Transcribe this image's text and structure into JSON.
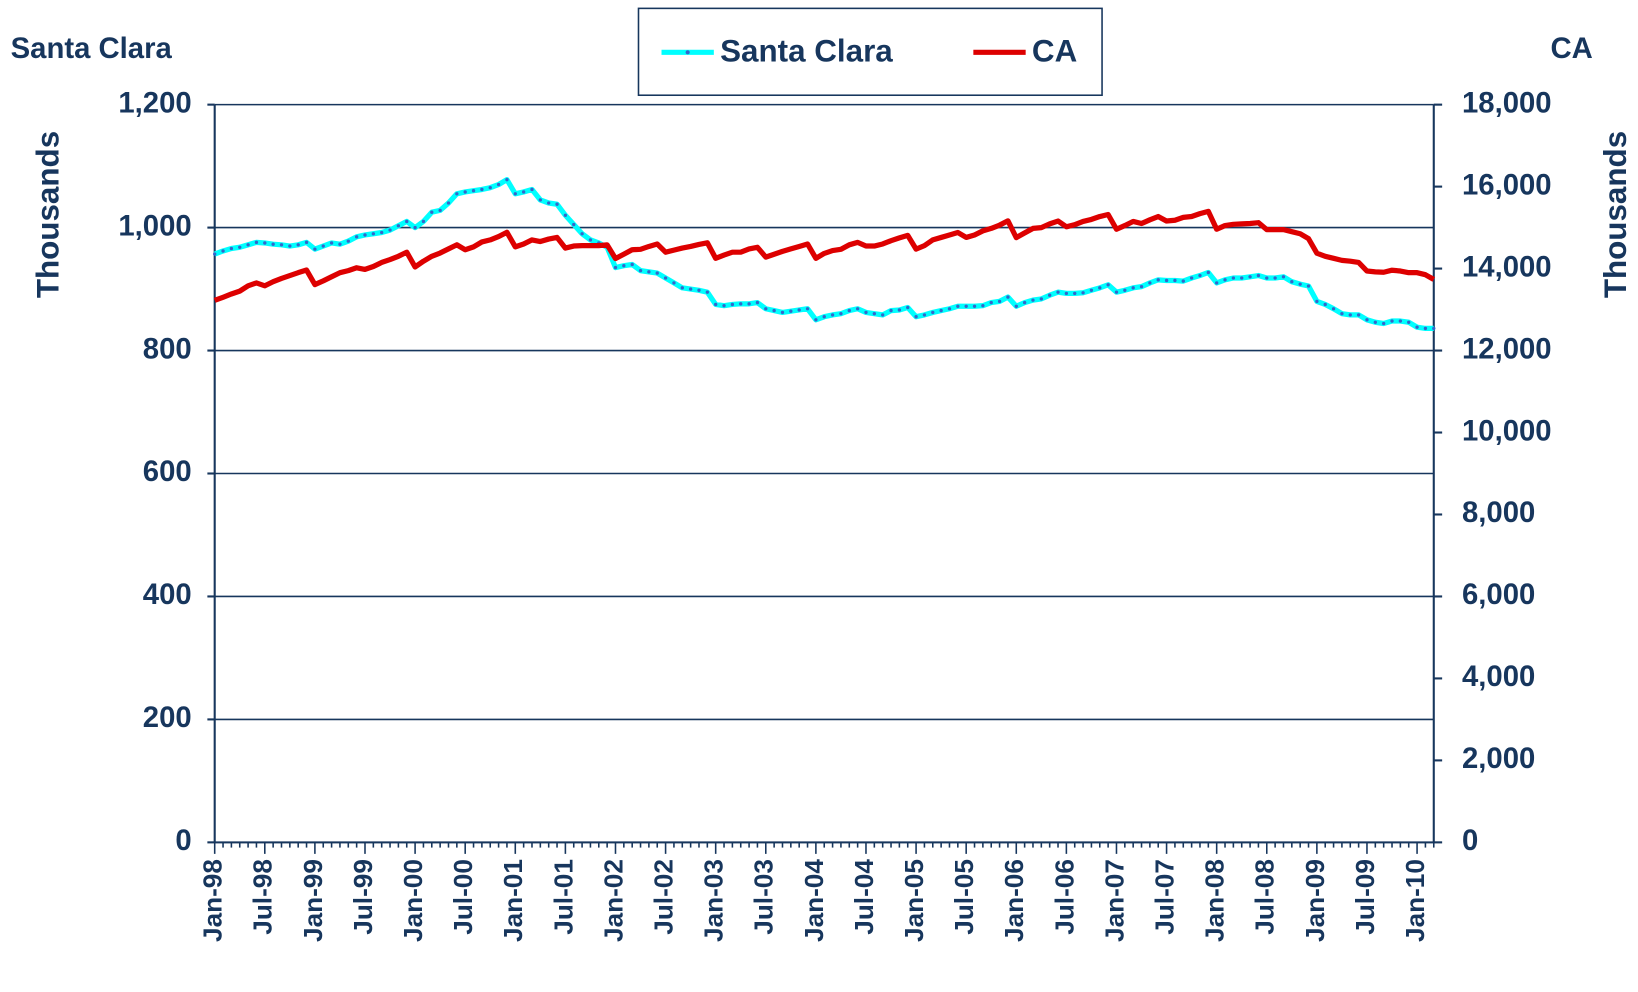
{
  "chart_data": {
    "type": "line",
    "ytitle": "Santa Clara",
    "y2title": "CA",
    "ylabel": "Thousands",
    "y2label": "Thousands",
    "categories": [
      "Jan-98",
      null,
      null,
      null,
      null,
      null,
      "Jul-98",
      null,
      null,
      null,
      null,
      null,
      "Jan-99",
      null,
      null,
      null,
      null,
      null,
      "Jul-99",
      null,
      null,
      null,
      null,
      null,
      "Jan-00",
      null,
      null,
      null,
      null,
      null,
      "Jul-00",
      null,
      null,
      null,
      null,
      null,
      "Jan-01",
      null,
      null,
      null,
      null,
      null,
      "Jul-01",
      null,
      null,
      null,
      null,
      null,
      "Jan-02",
      null,
      null,
      null,
      null,
      null,
      "Jul-02",
      null,
      null,
      null,
      null,
      null,
      "Jan-03",
      null,
      null,
      null,
      null,
      null,
      "Jul-03",
      null,
      null,
      null,
      null,
      null,
      "Jan-04",
      null,
      null,
      null,
      null,
      null,
      "Jul-04",
      null,
      null,
      null,
      null,
      null,
      "Jan-05",
      null,
      null,
      null,
      null,
      null,
      "Jul-05",
      null,
      null,
      null,
      null,
      null,
      "Jan-06",
      null,
      null,
      null,
      null,
      null,
      "Jul-06",
      null,
      null,
      null,
      null,
      null,
      "Jan-07",
      null,
      null,
      null,
      null,
      null,
      "Jul-07",
      null,
      null,
      null,
      null,
      null,
      "Jan-08",
      null,
      null,
      null,
      null,
      null,
      "Jul-08",
      null,
      null,
      null,
      null,
      null,
      "Jan-09",
      null,
      null,
      null,
      null,
      null,
      "Jul-09",
      null,
      null,
      null,
      null,
      null,
      "Jan-10",
      null,
      null
    ],
    "series": [
      {
        "name": "Santa Clara",
        "color": "#00ffff",
        "marker_color": "#3366cc",
        "axis": "y",
        "values": [
          957,
          962,
          966,
          968,
          972,
          976,
          975,
          973,
          972,
          970,
          972,
          976,
          965,
          970,
          975,
          973,
          978,
          985,
          988,
          990,
          992,
          996,
          1003,
          1010,
          1000,
          1010,
          1025,
          1028,
          1040,
          1055,
          1058,
          1060,
          1062,
          1065,
          1070,
          1078,
          1055,
          1058,
          1062,
          1045,
          1040,
          1038,
          1020,
          1005,
          990,
          980,
          975,
          968,
          935,
          938,
          940,
          930,
          928,
          926,
          918,
          910,
          902,
          900,
          898,
          895,
          875,
          873,
          875,
          876,
          876,
          878,
          868,
          865,
          862,
          864,
          866,
          868,
          850,
          855,
          858,
          860,
          865,
          868,
          862,
          860,
          858,
          865,
          866,
          870,
          855,
          858,
          862,
          865,
          868,
          872,
          872,
          872,
          873,
          878,
          880,
          887,
          872,
          878,
          882,
          884,
          890,
          895,
          893,
          893,
          894,
          898,
          902,
          907,
          895,
          898,
          902,
          904,
          910,
          915,
          914,
          914,
          913,
          918,
          922,
          927,
          910,
          915,
          918,
          918,
          920,
          922,
          918,
          918,
          920,
          912,
          908,
          905,
          880,
          875,
          868,
          860,
          858,
          858,
          850,
          846,
          844,
          848,
          848,
          846,
          838,
          836,
          836
        ]
      },
      {
        "name": "CA",
        "color": "#dd0000",
        "axis": "y2",
        "values": [
          13225,
          13300,
          13380,
          13450,
          13580,
          13650,
          13580,
          13680,
          13760,
          13830,
          13900,
          13965,
          13610,
          13700,
          13800,
          13900,
          13950,
          14020,
          13980,
          14050,
          14150,
          14220,
          14300,
          14400,
          14040,
          14180,
          14300,
          14380,
          14480,
          14580,
          14460,
          14530,
          14650,
          14700,
          14780,
          14885,
          14530,
          14600,
          14700,
          14660,
          14720,
          14760,
          14500,
          14550,
          14560,
          14560,
          14560,
          14580,
          14245,
          14350,
          14460,
          14470,
          14540,
          14600,
          14400,
          14450,
          14500,
          14540,
          14590,
          14630,
          14250,
          14330,
          14400,
          14400,
          14480,
          14520,
          14280,
          14350,
          14420,
          14480,
          14540,
          14600,
          14250,
          14370,
          14440,
          14470,
          14580,
          14640,
          14550,
          14550,
          14600,
          14680,
          14750,
          14810,
          14475,
          14560,
          14700,
          14760,
          14820,
          14880,
          14760,
          14820,
          14920,
          14980,
          15060,
          15165,
          14755,
          14870,
          14980,
          15000,
          15090,
          15160,
          15020,
          15070,
          15150,
          15200,
          15270,
          15320,
          14960,
          15050,
          15150,
          15100,
          15190,
          15270,
          15160,
          15180,
          15250,
          15270,
          15340,
          15395,
          14960,
          15050,
          15080,
          15090,
          15100,
          15120,
          14950,
          14950,
          14950,
          14900,
          14850,
          14730,
          14375,
          14300,
          14250,
          14200,
          14180,
          14150,
          13940,
          13920,
          13910,
          13960,
          13940,
          13900,
          13900,
          13850,
          13735
        ]
      }
    ],
    "ylim": [
      0,
      1200
    ],
    "yticks": [
      0,
      200,
      400,
      600,
      800,
      {
        "value": 1000,
        "label": "1,000"
      },
      {
        "value": 1200,
        "label": "1,200"
      }
    ],
    "y2lim": [
      0,
      18000
    ],
    "y2ticks": [
      0,
      {
        "value": 2000,
        "label": "2,000"
      },
      {
        "value": 4000,
        "label": "4,000"
      },
      {
        "value": 6000,
        "label": "6,000"
      },
      {
        "value": 8000,
        "label": "8,000"
      },
      {
        "value": 10000,
        "label": "10,000"
      },
      {
        "value": 12000,
        "label": "12,000"
      },
      {
        "value": 14000,
        "label": "14,000"
      },
      {
        "value": 16000,
        "label": "16,000"
      },
      {
        "value": 18000,
        "label": "18,000"
      }
    ],
    "grid": true,
    "legend": "top"
  }
}
